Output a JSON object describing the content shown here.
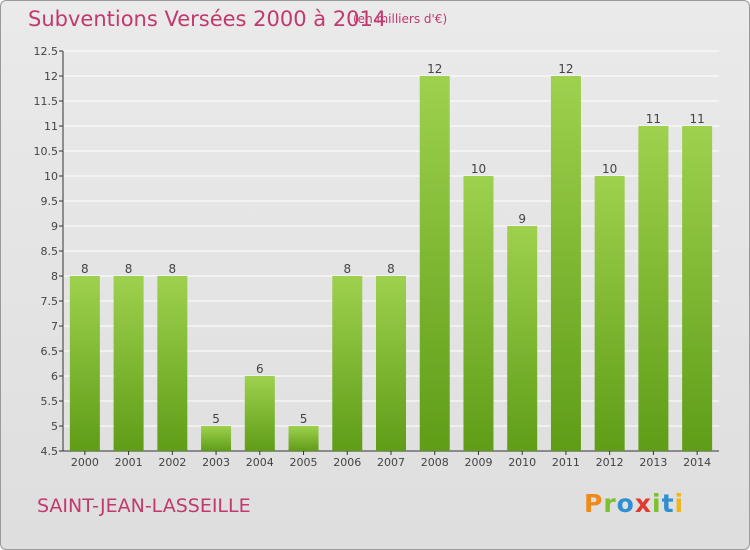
{
  "header": {
    "title": "Subventions Versées 2000 à 2014",
    "unit": "(en milliers d'€)"
  },
  "footer": {
    "commune": "SAINT-JEAN-LASSEILLE",
    "logo_text": "Proxiti"
  },
  "colors": {
    "title": "#c1396f",
    "bar_top": "#9ed14e",
    "bar_bottom": "#5f9d17",
    "grid": "#ffffff"
  },
  "chart_data": {
    "type": "bar",
    "title": "Subventions Versées 2000 à 2014",
    "subtitle": "(en milliers d'€)",
    "xlabel": "",
    "ylabel": "",
    "categories": [
      "2000",
      "2001",
      "2002",
      "2003",
      "2004",
      "2005",
      "2006",
      "2007",
      "2008",
      "2009",
      "2010",
      "2011",
      "2012",
      "2013",
      "2014"
    ],
    "values": [
      8,
      8,
      8,
      5,
      6,
      5,
      8,
      8,
      12,
      10,
      9,
      12,
      10,
      11,
      11
    ],
    "ylim": [
      4.5,
      12.5
    ],
    "yticks": [
      "4.5",
      "5",
      "5.5",
      "6",
      "6.5",
      "7",
      "7.5",
      "8",
      "8.5",
      "9",
      "9.5",
      "10",
      "10.5",
      "11",
      "11.5",
      "12",
      "12.5"
    ],
    "grid": true,
    "legend": "none"
  }
}
